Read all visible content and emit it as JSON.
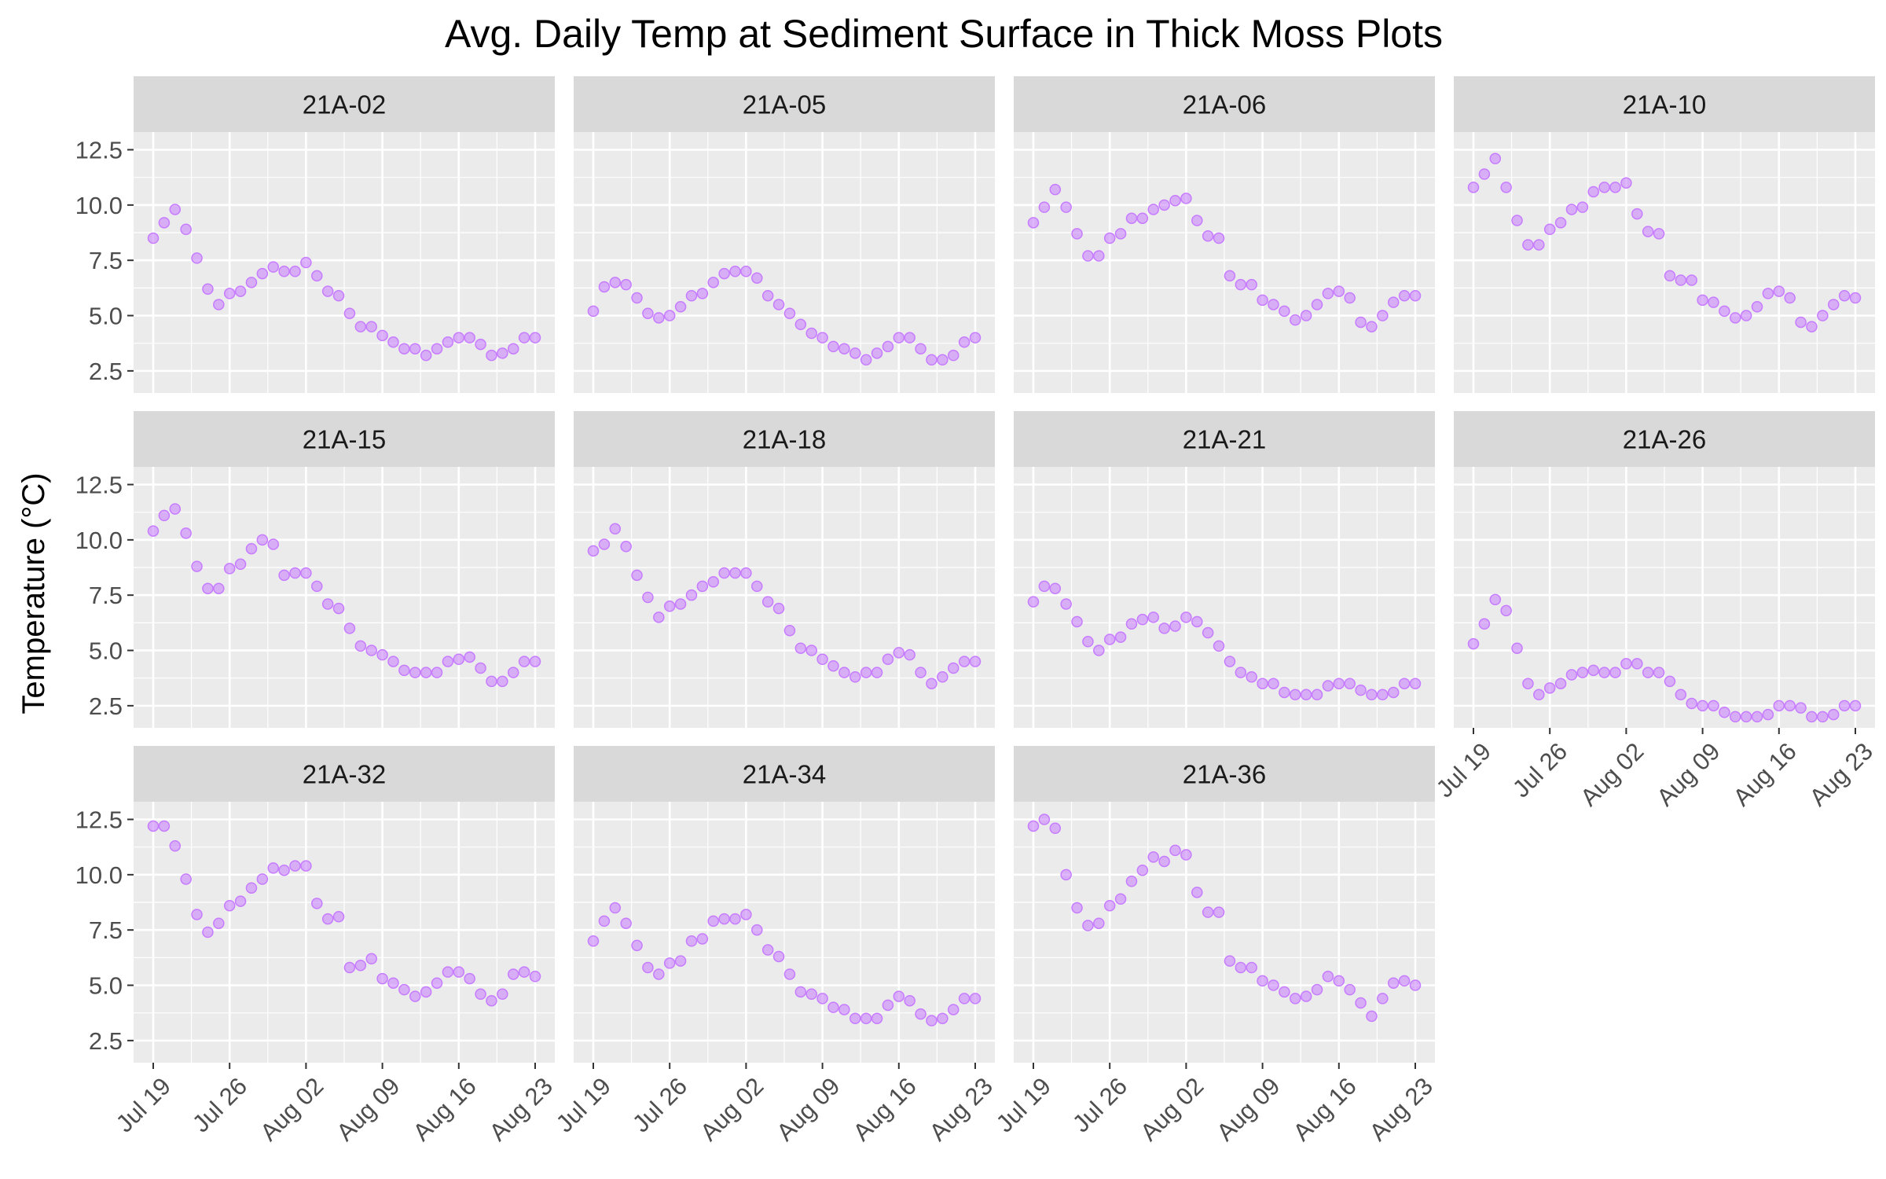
{
  "chart_data": {
    "type": "scatter",
    "title": "Avg. Daily Temp at Sediment Surface in Thick Moss Plots",
    "xlabel": "",
    "ylabel": "Temperature (°C)",
    "x_dates": [
      "Jul 19",
      "Jul 20",
      "Jul 21",
      "Jul 22",
      "Jul 23",
      "Jul 24",
      "Jul 25",
      "Jul 26",
      "Jul 27",
      "Jul 28",
      "Jul 29",
      "Jul 30",
      "Jul 31",
      "Aug 01",
      "Aug 02",
      "Aug 03",
      "Aug 04",
      "Aug 05",
      "Aug 06",
      "Aug 07",
      "Aug 08",
      "Aug 09",
      "Aug 10",
      "Aug 11",
      "Aug 12",
      "Aug 13",
      "Aug 14",
      "Aug 15",
      "Aug 16",
      "Aug 17",
      "Aug 18",
      "Aug 19",
      "Aug 20",
      "Aug 21",
      "Aug 22",
      "Aug 23"
    ],
    "x_ticks": [
      "Jul 19",
      "Jul 26",
      "Aug 02",
      "Aug 09",
      "Aug 16",
      "Aug 23"
    ],
    "y_ticks": [
      "2.5",
      "5.0",
      "7.5",
      "10.0",
      "12.5"
    ],
    "ylim": [
      1.5,
      13.3
    ],
    "grid": true,
    "point_color": "#c77cff",
    "panel_background": "#ebebeb",
    "strip_background": "#d9d9d9",
    "facets": [
      {
        "name": "21A-02",
        "values": [
          8.5,
          9.2,
          9.8,
          8.9,
          7.6,
          6.2,
          5.5,
          6.0,
          6.1,
          6.5,
          6.9,
          7.2,
          7.0,
          7.0,
          7.4,
          6.8,
          6.1,
          5.9,
          5.1,
          4.5,
          4.5,
          4.1,
          3.8,
          3.5,
          3.5,
          3.2,
          3.5,
          3.8,
          4.0,
          4.0,
          3.7,
          3.2,
          3.3,
          3.5,
          4.0,
          4.0
        ]
      },
      {
        "name": "21A-05",
        "values": [
          5.2,
          6.3,
          6.5,
          6.4,
          5.8,
          5.1,
          4.9,
          5.0,
          5.4,
          5.9,
          6.0,
          6.5,
          6.9,
          7.0,
          7.0,
          6.7,
          5.9,
          5.5,
          5.1,
          4.6,
          4.2,
          4.0,
          3.6,
          3.5,
          3.3,
          3.0,
          3.3,
          3.6,
          4.0,
          4.0,
          3.5,
          3.0,
          3.0,
          3.2,
          3.8,
          4.0
        ]
      },
      {
        "name": "21A-06",
        "values": [
          9.2,
          9.9,
          10.7,
          9.9,
          8.7,
          7.7,
          7.7,
          8.5,
          8.7,
          9.4,
          9.4,
          9.8,
          10.0,
          10.2,
          10.3,
          9.3,
          8.6,
          8.5,
          6.8,
          6.4,
          6.4,
          5.7,
          5.5,
          5.2,
          4.8,
          5.0,
          5.5,
          6.0,
          6.1,
          5.8,
          4.7,
          4.5,
          5.0,
          5.6,
          5.9,
          5.9
        ]
      },
      {
        "name": "21A-10",
        "values": [
          10.8,
          11.4,
          12.1,
          10.8,
          9.3,
          8.2,
          8.2,
          8.9,
          9.2,
          9.8,
          9.9,
          10.6,
          10.8,
          10.8,
          11.0,
          9.6,
          8.8,
          8.7,
          6.8,
          6.6,
          6.6,
          5.7,
          5.6,
          5.2,
          4.9,
          5.0,
          5.4,
          6.0,
          6.1,
          5.8,
          4.7,
          4.5,
          5.0,
          5.5,
          5.9,
          5.8
        ]
      },
      {
        "name": "21A-15",
        "values": [
          10.4,
          11.1,
          11.4,
          10.3,
          8.8,
          7.8,
          7.8,
          8.7,
          8.9,
          9.6,
          10.0,
          9.8,
          8.4,
          8.5,
          8.5,
          7.9,
          7.1,
          6.9,
          6.0,
          5.2,
          5.0,
          4.8,
          4.5,
          4.1,
          4.0,
          4.0,
          4.0,
          4.5,
          4.6,
          4.7,
          4.2,
          3.6,
          3.6,
          4.0,
          4.5,
          4.5
        ]
      },
      {
        "name": "21A-18",
        "values": [
          9.5,
          9.8,
          10.5,
          9.7,
          8.4,
          7.4,
          6.5,
          7.0,
          7.1,
          7.5,
          7.9,
          8.1,
          8.5,
          8.5,
          8.5,
          7.9,
          7.2,
          6.9,
          5.9,
          5.1,
          5.0,
          4.6,
          4.3,
          4.0,
          3.8,
          4.0,
          4.0,
          4.6,
          4.9,
          4.8,
          4.0,
          3.5,
          3.8,
          4.2,
          4.5,
          4.5
        ]
      },
      {
        "name": "21A-21",
        "values": [
          7.2,
          7.9,
          7.8,
          7.1,
          6.3,
          5.4,
          5.0,
          5.5,
          5.6,
          6.2,
          6.4,
          6.5,
          6.0,
          6.1,
          6.5,
          6.3,
          5.8,
          5.2,
          4.5,
          4.0,
          3.8,
          3.5,
          3.5,
          3.1,
          3.0,
          3.0,
          3.0,
          3.4,
          3.5,
          3.5,
          3.2,
          3.0,
          3.0,
          3.1,
          3.5,
          3.5
        ]
      },
      {
        "name": "21A-26",
        "values": [
          5.3,
          6.2,
          7.3,
          6.8,
          5.1,
          3.5,
          3.0,
          3.3,
          3.5,
          3.9,
          4.0,
          4.1,
          4.0,
          4.0,
          4.4,
          4.4,
          4.0,
          4.0,
          3.6,
          3.0,
          2.6,
          2.5,
          2.5,
          2.2,
          2.0,
          2.0,
          2.0,
          2.1,
          2.5,
          2.5,
          2.4,
          2.0,
          2.0,
          2.1,
          2.5,
          2.5
        ]
      },
      {
        "name": "21A-32",
        "values": [
          12.2,
          12.2,
          11.3,
          9.8,
          8.2,
          7.4,
          7.8,
          8.6,
          8.8,
          9.4,
          9.8,
          10.3,
          10.2,
          10.4,
          10.4,
          8.7,
          8.0,
          8.1,
          5.8,
          5.9,
          6.2,
          5.3,
          5.1,
          4.8,
          4.5,
          4.7,
          5.1,
          5.6,
          5.6,
          5.3,
          4.6,
          4.3,
          4.6,
          5.5,
          5.6,
          5.4
        ]
      },
      {
        "name": "21A-34",
        "values": [
          7.0,
          7.9,
          8.5,
          7.8,
          6.8,
          5.8,
          5.5,
          6.0,
          6.1,
          7.0,
          7.1,
          7.9,
          8.0,
          8.0,
          8.2,
          7.5,
          6.6,
          6.3,
          5.5,
          4.7,
          4.6,
          4.4,
          4.0,
          3.9,
          3.5,
          3.5,
          3.5,
          4.1,
          4.5,
          4.3,
          3.7,
          3.4,
          3.5,
          3.9,
          4.4,
          4.4
        ]
      },
      {
        "name": "21A-36",
        "values": [
          12.2,
          12.5,
          12.1,
          10.0,
          8.5,
          7.7,
          7.8,
          8.6,
          8.9,
          9.7,
          10.2,
          10.8,
          10.6,
          11.1,
          10.9,
          9.2,
          8.3,
          8.3,
          6.1,
          5.8,
          5.8,
          5.2,
          5.0,
          4.7,
          4.4,
          4.5,
          4.8,
          5.4,
          5.2,
          4.8,
          4.2,
          3.6,
          4.4,
          5.1,
          5.2,
          5.0
        ]
      }
    ]
  }
}
